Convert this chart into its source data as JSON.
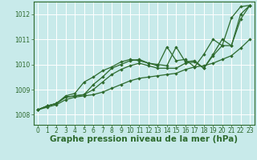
{
  "background_color": "#c8eaea",
  "grid_color": "#b8dada",
  "line_color": "#2d6a2d",
  "marker_color": "#2d6a2d",
  "xlabel": "Graphe pression niveau de la mer (hPa)",
  "xlabel_fontsize": 7.5,
  "xlim": [
    -0.5,
    23.5
  ],
  "ylim": [
    1007.6,
    1012.5
  ],
  "yticks": [
    1008,
    1009,
    1010,
    1011,
    1012
  ],
  "xticks": [
    0,
    1,
    2,
    3,
    4,
    5,
    6,
    7,
    8,
    9,
    10,
    11,
    12,
    13,
    14,
    15,
    16,
    17,
    18,
    19,
    20,
    21,
    22,
    23
  ],
  "series": [
    [
      1008.2,
      1008.35,
      1008.45,
      1008.7,
      1008.75,
      1008.8,
      1009.2,
      1009.5,
      1009.85,
      1010.0,
      1010.15,
      1010.2,
      1010.05,
      1010.0,
      1009.95,
      1010.7,
      1010.1,
      1010.15,
      1009.85,
      1010.4,
      1011.0,
      1010.75,
      1012.0,
      1012.35
    ],
    [
      1008.2,
      1008.35,
      1008.45,
      1008.7,
      1008.75,
      1008.8,
      1009.0,
      1009.3,
      1009.6,
      1009.8,
      1009.95,
      1010.05,
      1009.95,
      1009.85,
      1009.85,
      1009.85,
      1010.05,
      1010.1,
      1009.85,
      1010.35,
      1010.75,
      1010.75,
      1011.8,
      1012.35
    ],
    [
      1008.2,
      1008.35,
      1008.45,
      1008.75,
      1008.85,
      1009.3,
      1009.5,
      1009.75,
      1009.9,
      1010.1,
      1010.2,
      1010.15,
      1010.05,
      1009.95,
      1010.7,
      1010.15,
      1010.2,
      1009.9,
      1010.4,
      1011.0,
      1010.75,
      1011.85,
      1012.3,
      1012.35
    ],
    [
      1008.2,
      1008.3,
      1008.4,
      1008.6,
      1008.7,
      1008.75,
      1008.8,
      1008.9,
      1009.05,
      1009.2,
      1009.35,
      1009.45,
      1009.5,
      1009.55,
      1009.6,
      1009.65,
      1009.8,
      1009.9,
      1009.95,
      1010.05,
      1010.2,
      1010.35,
      1010.65,
      1011.0
    ]
  ]
}
